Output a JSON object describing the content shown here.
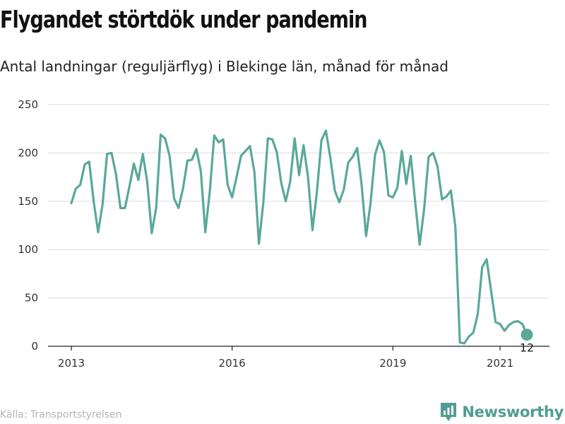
{
  "title": "Flygandet störtdök under pandemin",
  "subtitle": "Antal landningar (reguljärflyg) i Blekinge län, månad för månad",
  "source": "Källa: Transportstyrelsen",
  "brand": {
    "name": "Newsworthy",
    "logo_icon": "bar-chart-badge-icon",
    "color": "#4f9d94"
  },
  "chart_data": {
    "type": "line",
    "x_start": "2013-01",
    "x_end": "2021-07",
    "x_ticks": [
      "2013",
      "2016",
      "2019",
      "2021"
    ],
    "y_ticks": [
      "0",
      "50",
      "100",
      "150",
      "200",
      "250"
    ],
    "ylim": [
      0,
      250
    ],
    "grid": "horizontal",
    "line_color": "#5aa89b",
    "last_value_label": "12",
    "series": [
      {
        "values": [
          148,
          163,
          167,
          188,
          191,
          150,
          118,
          147,
          199,
          200,
          178,
          143,
          143,
          165,
          189,
          172,
          199,
          170,
          117,
          143,
          219,
          215,
          197,
          153,
          143,
          163,
          192,
          193,
          204,
          181,
          118,
          160,
          218,
          211,
          214,
          167,
          154,
          175,
          197,
          202,
          207,
          180,
          106,
          149,
          215,
          214,
          201,
          169,
          150,
          170,
          215,
          177,
          208,
          175,
          120,
          160,
          213,
          223,
          195,
          161,
          149,
          162,
          190,
          196,
          205,
          167,
          114,
          148,
          198,
          213,
          201,
          156,
          154,
          164,
          202,
          168,
          197,
          149,
          105,
          142,
          196,
          200,
          186,
          152,
          155,
          161,
          123,
          4,
          3,
          10,
          14,
          33,
          82,
          90,
          57,
          25,
          23,
          16,
          22,
          25,
          26,
          23,
          12
        ]
      }
    ]
  }
}
